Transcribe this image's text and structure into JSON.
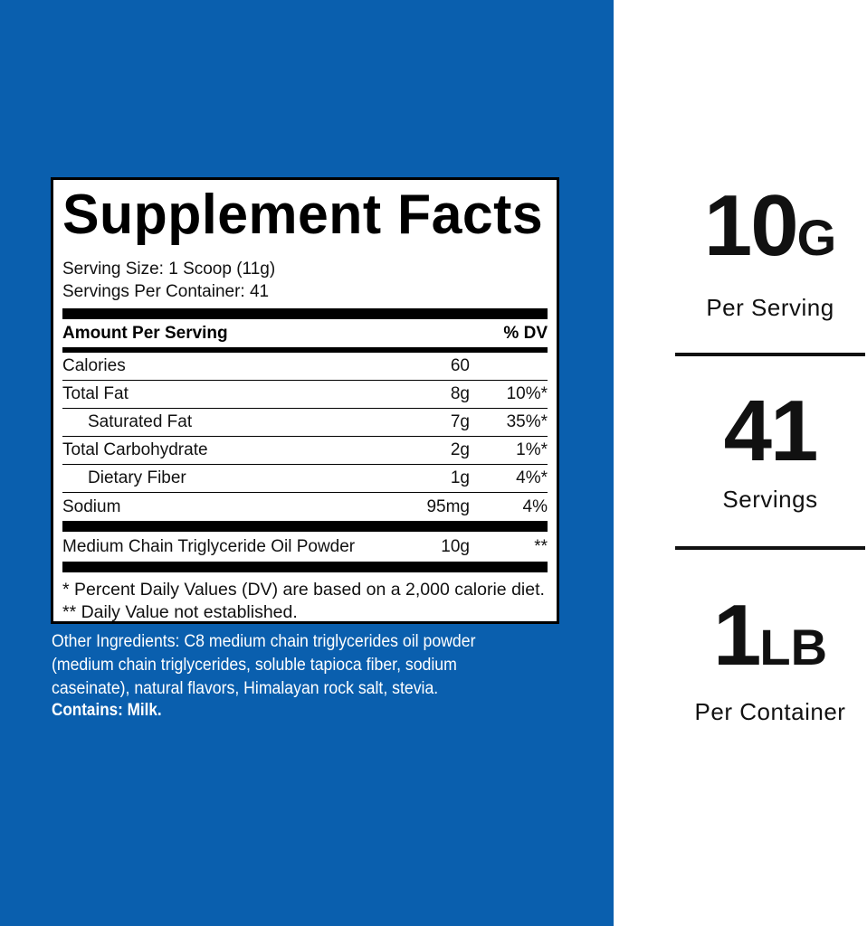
{
  "colors": {
    "background_blue": "#0a5fae",
    "panel": "#ffffff"
  },
  "label": {
    "title": "Supplement Facts",
    "serving_size": "Serving Size: 1 Scoop (11g)",
    "servings_per_container": "Servings Per Container: 41",
    "amount_header": "Amount Per Serving",
    "dv_header": "% DV",
    "rows": [
      {
        "name": "Calories",
        "amount": "60",
        "dv": ""
      },
      {
        "name": "Total Fat",
        "amount": "8g",
        "dv": "10%*"
      },
      {
        "name": "Saturated Fat",
        "amount": "7g",
        "dv": "35%*"
      },
      {
        "name": "Total Carbohydrate",
        "amount": "2g",
        "dv": "1%*"
      },
      {
        "name": "Dietary Fiber",
        "amount": "1g",
        "dv": "4%*"
      },
      {
        "name": "Sodium",
        "amount": "95mg",
        "dv": "4%"
      }
    ],
    "mct": {
      "name": "Medium Chain Triglyceride Oil Powder",
      "amount": "10g",
      "dv": "**"
    },
    "footnote1": "* Percent Daily Values (DV) are based on a 2,000 calorie diet.",
    "footnote2": "** Daily Value not established."
  },
  "other_ingredients": "Other Ingredients: C8 medium chain triglycerides oil powder (medium chain triglycerides, soluble tapioca fiber, sodium caseinate), natural flavors, Himalayan rock salt, stevia.",
  "contains": "Contains: Milk.",
  "stats": [
    {
      "value": "10",
      "unit": "G",
      "caption": "Per Serving"
    },
    {
      "value": "41",
      "unit": "",
      "caption": "Servings"
    },
    {
      "value": "1",
      "unit": "LB",
      "caption": "Per Container"
    }
  ]
}
